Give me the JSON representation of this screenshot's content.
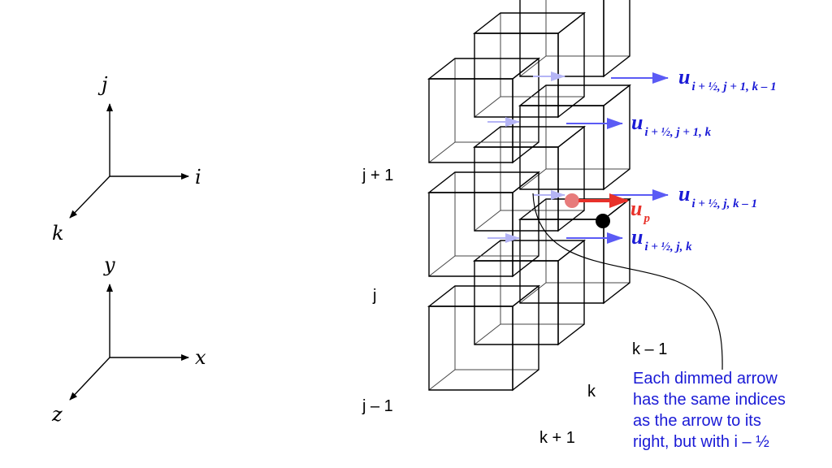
{
  "axes": {
    "index_frame": {
      "up": "j",
      "right": "i",
      "front": "k"
    },
    "coord_frame": {
      "up": "y",
      "right": "x",
      "front": "z"
    }
  },
  "row_labels": {
    "top": "j + 1",
    "middle": "j",
    "bottom": "j – 1"
  },
  "depth_labels": {
    "back": "k – 1",
    "middle": "k",
    "front": "k + 1"
  },
  "velocity_labels": [
    {
      "symbol": "u",
      "subscript": "i + ½, j + 1, k – 1"
    },
    {
      "symbol": "u",
      "subscript": "i + ½, j + 1, k"
    },
    {
      "symbol": "u",
      "subscript": "i + ½, j, k – 1"
    },
    {
      "symbol": "u",
      "subscript": "i + ½, j, k"
    }
  ],
  "particle_label": {
    "symbol": "u",
    "subscript": "p"
  },
  "note_lines": [
    "Each dimmed arrow",
    "has the same indices",
    "as the arrow to its",
    "right, but with i – ½"
  ],
  "colors": {
    "velocity": "#1a1ad6",
    "arrow": "#5b5bf5",
    "dim_arrow": "#b4b4f5",
    "particle": "#e8312a",
    "particle_dot": "#e77b7b",
    "cell_point": "#000000"
  }
}
